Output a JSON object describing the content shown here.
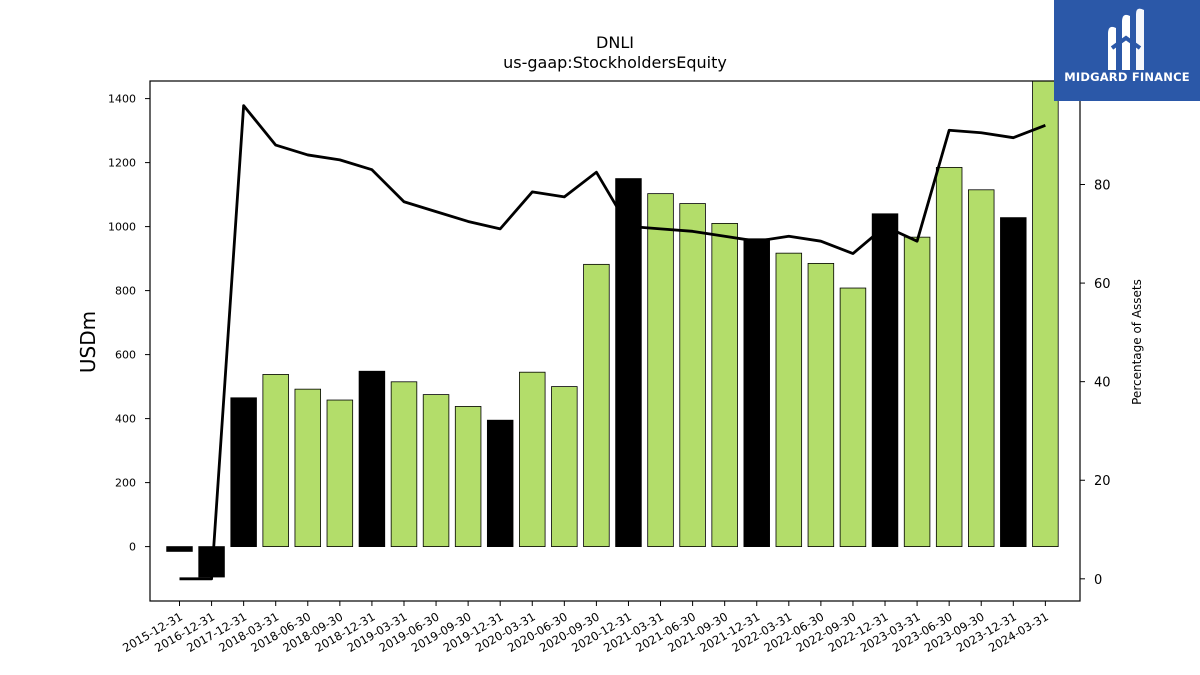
{
  "brand": {
    "name": "MIDGARD FINANCE",
    "bg_color": "#2b58a8"
  },
  "chart_data": {
    "type": "bar",
    "title": "DNLI",
    "subtitle": "us-gaap:StockholdersEquity",
    "ylabel": "USDm",
    "y2label": "Percentage of Assets",
    "ylim": [
      -170,
      1455
    ],
    "y2lim": [
      -4.5,
      101
    ],
    "yticks": [
      0,
      200,
      400,
      600,
      800,
      1000,
      1200,
      1400
    ],
    "y2ticks": [
      0,
      20,
      40,
      60,
      80
    ],
    "categories": [
      "2015-12-31",
      "2016-12-31",
      "2017-12-31",
      "2018-03-31",
      "2018-06-30",
      "2018-09-30",
      "2018-12-31",
      "2019-03-31",
      "2019-06-30",
      "2019-09-30",
      "2019-12-31",
      "2020-03-31",
      "2020-06-30",
      "2020-09-30",
      "2020-12-31",
      "2021-03-31",
      "2021-06-30",
      "2021-09-30",
      "2021-12-31",
      "2022-03-31",
      "2022-06-30",
      "2022-09-30",
      "2022-12-31",
      "2023-03-31",
      "2023-06-30",
      "2023-09-30",
      "2023-12-31",
      "2024-03-31"
    ],
    "series": [
      {
        "kind": "bar",
        "values": [
          -15,
          -95,
          465,
          538,
          492,
          458,
          548,
          515,
          475,
          438,
          395,
          545,
          500,
          882,
          1150,
          1103,
          1072,
          1010,
          962,
          917,
          885,
          808,
          1040,
          967,
          1185,
          1115,
          1028,
          1455
        ],
        "colors": [
          "black",
          "black",
          "black",
          "green",
          "green",
          "green",
          "black",
          "green",
          "green",
          "green",
          "black",
          "green",
          "green",
          "green",
          "black",
          "green",
          "green",
          "green",
          "black",
          "green",
          "green",
          "green",
          "black",
          "green",
          "green",
          "green",
          "black",
          "green"
        ]
      },
      {
        "kind": "line",
        "axis": "right",
        "values": [
          0,
          0,
          96,
          88,
          86,
          85,
          83,
          76.5,
          74.5,
          72.5,
          71,
          78.5,
          77.5,
          82.5,
          71.5,
          71,
          70.5,
          69.5,
          68.5,
          69.5,
          68.5,
          66,
          71.5,
          68.5,
          91,
          90.5,
          89.5,
          92
        ]
      }
    ],
    "colors": {
      "green": "#b3dd6a",
      "black": "#000000"
    },
    "grid": false,
    "legend": "none"
  }
}
